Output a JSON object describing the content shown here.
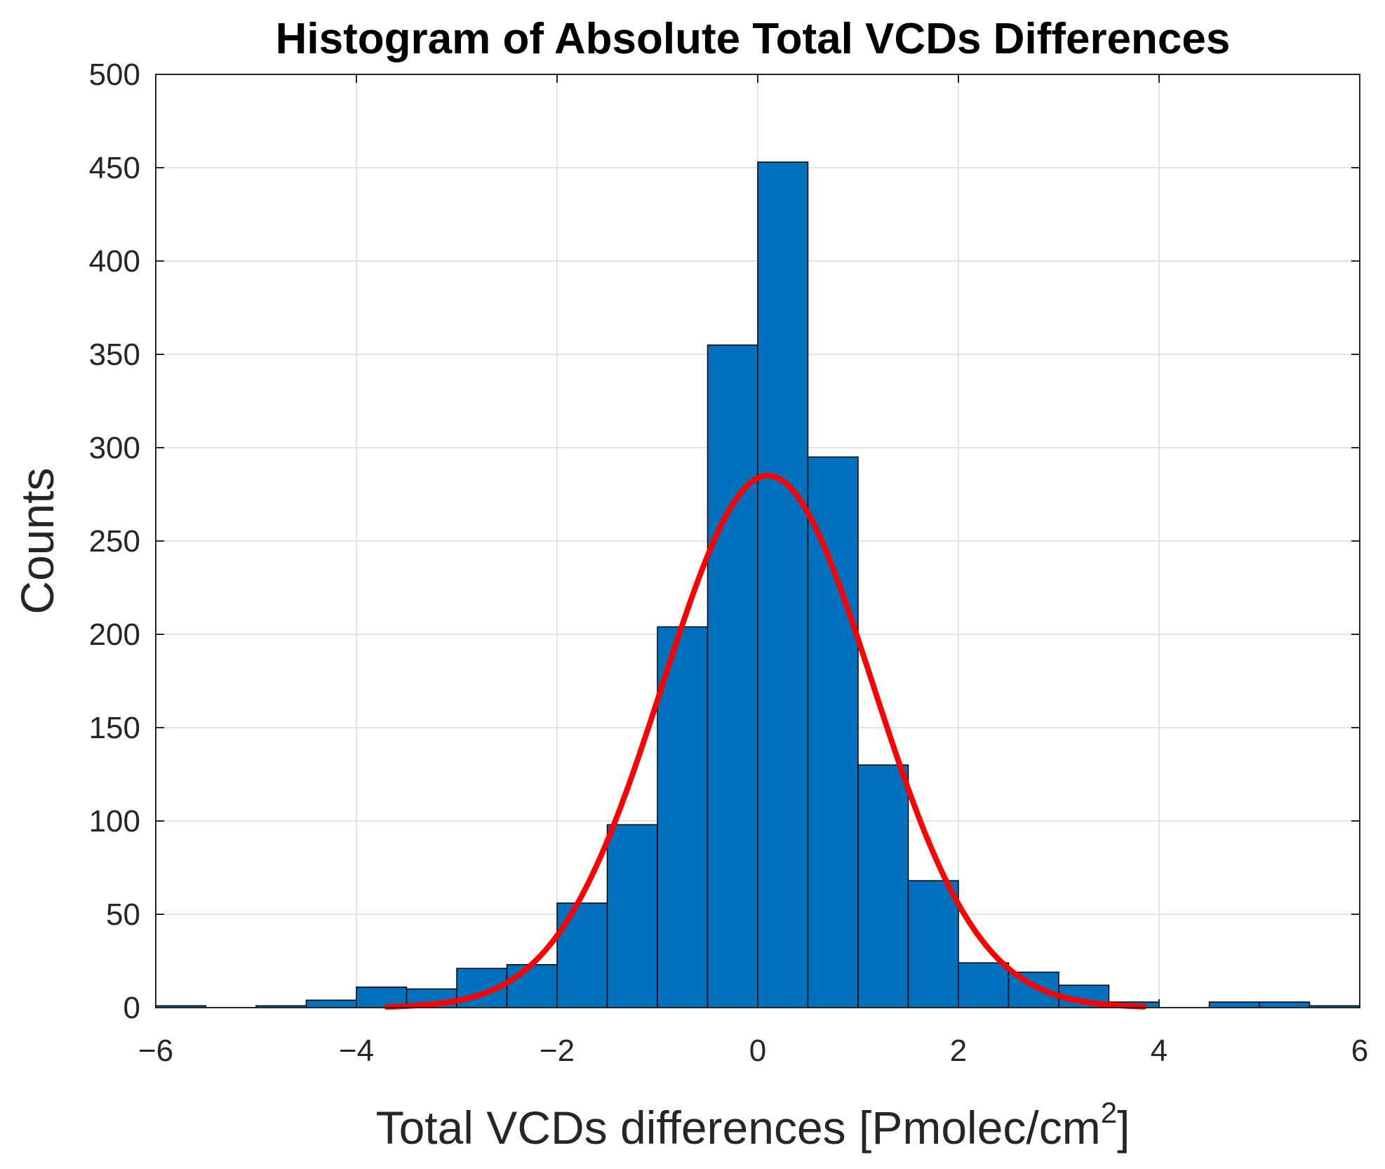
{
  "chart_data": {
    "type": "bar",
    "title": "Histogram of Absolute Total VCDs Differences",
    "xlabel": "Total VCDs differences [Pmolec/cm",
    "xlabel_sup": "2",
    "xlabel_end": "]",
    "ylabel": "Counts",
    "xlim": [
      -6,
      6
    ],
    "ylim": [
      0,
      500
    ],
    "xticks": [
      -6,
      -4,
      -2,
      0,
      2,
      4,
      6
    ],
    "xtick_labels": [
      "−6",
      "−4",
      "−2",
      "0",
      "2",
      "4",
      "6"
    ],
    "yticks": [
      0,
      50,
      100,
      150,
      200,
      250,
      300,
      350,
      400,
      450,
      500
    ],
    "grid": true,
    "bin_width": 0.5,
    "bin_edges": [
      -6,
      -5.5,
      -5,
      -4.5,
      -4,
      -3.5,
      -3,
      -2.5,
      -2,
      -1.5,
      -1,
      -0.5,
      0,
      0.5,
      1,
      1.5,
      2,
      2.5,
      3,
      3.5,
      4,
      4.5,
      5,
      5.5,
      6
    ],
    "counts": [
      1,
      0,
      1,
      4,
      11,
      10,
      21,
      23,
      56,
      98,
      204,
      355,
      453,
      295,
      130,
      68,
      24,
      19,
      12,
      3,
      0,
      3,
      3,
      1
    ],
    "bar_color": "#0072bd",
    "fit": {
      "type": "normal",
      "color": "#ff0000",
      "peak": 285,
      "mean": 0.1,
      "sigma": 1.05,
      "x_range": [
        -3.7,
        3.85
      ]
    }
  }
}
